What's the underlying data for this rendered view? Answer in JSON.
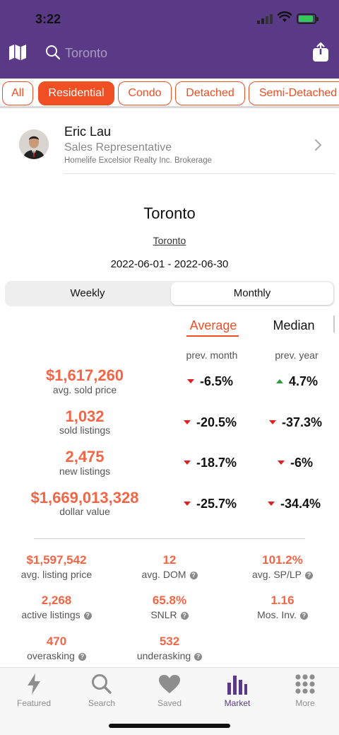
{
  "status_bar": {
    "time": "3:22"
  },
  "header": {
    "search_placeholder": "Toronto",
    "icons": [
      "map-icon",
      "search-icon",
      "share-icon"
    ]
  },
  "filters": {
    "chips": [
      "All",
      "Residential",
      "Condo",
      "Detached",
      "Semi-Detached"
    ],
    "active": "Residential"
  },
  "agent": {
    "name": "Eric Lau",
    "title": "Sales Representative",
    "brokerage": "Homelife Excelsior Realty Inc. Brokerage"
  },
  "market": {
    "city": "Toronto",
    "link": "Toronto",
    "date_range": "2022-06-01 - 2022-06-30",
    "period_tabs": [
      "Weekly",
      "Monthly"
    ],
    "selected_period": "Monthly",
    "metric_tabs": [
      "Average",
      "Median"
    ],
    "selected_metric": "Average",
    "col_prev_month": "prev. month",
    "col_prev_year": "prev. year"
  },
  "stats": [
    {
      "value": "$1,617,260",
      "label": "avg. sold price",
      "prev_month": "-6.5%",
      "prev_month_dir": "down",
      "prev_year": "4.7%",
      "prev_year_dir": "up"
    },
    {
      "value": "1,032",
      "label": "sold listings",
      "prev_month": "-20.5%",
      "prev_month_dir": "down",
      "prev_year": "-37.3%",
      "prev_year_dir": "down"
    },
    {
      "value": "2,475",
      "label": "new listings",
      "prev_month": "-18.7%",
      "prev_month_dir": "down",
      "prev_year": "-6%",
      "prev_year_dir": "down"
    },
    {
      "value": "$1,669,013,328",
      "label": "dollar value",
      "prev_month": "-25.7%",
      "prev_month_dir": "down",
      "prev_year": "-34.4%",
      "prev_year_dir": "down"
    }
  ],
  "metrics": [
    {
      "value": "$1,597,542",
      "label": "avg. listing price"
    },
    {
      "value": "12",
      "label": "avg. DOM"
    },
    {
      "value": "101.2%",
      "label": "avg. SP/LP"
    },
    {
      "value": "2,268",
      "label": "active listings"
    },
    {
      "value": "65.8%",
      "label": "SNLR"
    },
    {
      "value": "1.16",
      "label": "Mos. Inv."
    },
    {
      "value": "470",
      "label": "overasking"
    },
    {
      "value": "532",
      "label": "underasking"
    }
  ],
  "nav": {
    "items": [
      "Featured",
      "Search",
      "Saved",
      "Market",
      "More"
    ],
    "active": "Market"
  },
  "colors": {
    "header": "#5a3a86",
    "accent": "#f04e23",
    "value": "#f26647",
    "down": "#e02020",
    "up": "#2e9e3a"
  }
}
